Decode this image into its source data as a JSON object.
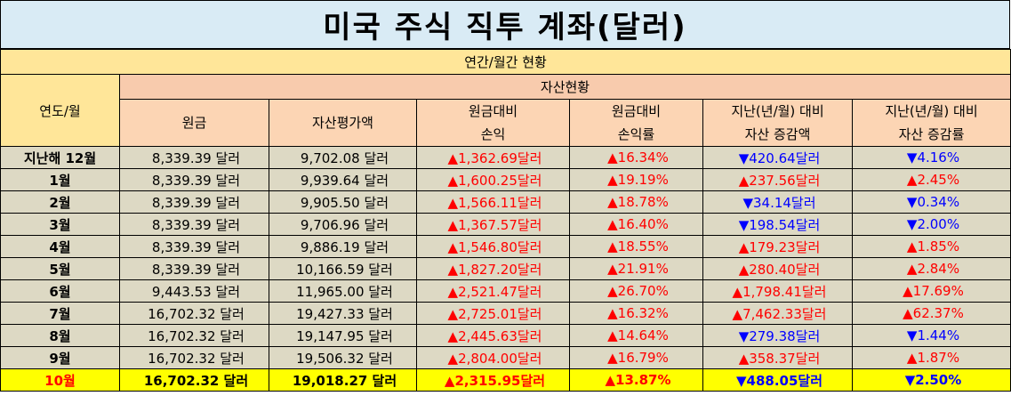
{
  "title": "미국 주식 직투 계좌(달러)",
  "period_header": "연간/월간 현황",
  "year_header": "연도/월",
  "asset_header": "자산현황",
  "columns": [
    [
      "원금"
    ],
    [
      "자산평가액"
    ],
    [
      "원금대비",
      "손익"
    ],
    [
      "원금대비",
      "손익률"
    ],
    [
      "지난(년/월) 대비",
      "자산 증감액"
    ],
    [
      "지난(년/월) 대비",
      "자산 증감률"
    ]
  ],
  "colors": {
    "up": "#ff0000",
    "down": "#0000ff",
    "highlight": "#ffff00"
  },
  "rows": [
    {
      "label": "지난해 12월",
      "principal": "8,339.39 달러",
      "value": "9,702.08 달러",
      "pl": "▲1,362.69달러",
      "pl_dir": "up",
      "pl_rate": "▲16.34%",
      "pl_rate_dir": "up",
      "chg": "▼420.64달러",
      "chg_dir": "down",
      "chg_rate": "▼4.16%",
      "chg_rate_dir": "down"
    },
    {
      "label": "1월",
      "principal": "8,339.39 달러",
      "value": "9,939.64 달러",
      "pl": "▲1,600.25달러",
      "pl_dir": "up",
      "pl_rate": "▲19.19%",
      "pl_rate_dir": "up",
      "chg": "▲237.56달러",
      "chg_dir": "up",
      "chg_rate": "▲2.45%",
      "chg_rate_dir": "up"
    },
    {
      "label": "2월",
      "principal": "8,339.39 달러",
      "value": "9,905.50 달러",
      "pl": "▲1,566.11달러",
      "pl_dir": "up",
      "pl_rate": "▲18.78%",
      "pl_rate_dir": "up",
      "chg": "▼34.14달러",
      "chg_dir": "down",
      "chg_rate": "▼0.34%",
      "chg_rate_dir": "down"
    },
    {
      "label": "3월",
      "principal": "8,339.39 달러",
      "value": "9,706.96 달러",
      "pl": "▲1,367.57달러",
      "pl_dir": "up",
      "pl_rate": "▲16.40%",
      "pl_rate_dir": "up",
      "chg": "▼198.54달러",
      "chg_dir": "down",
      "chg_rate": "▼2.00%",
      "chg_rate_dir": "down"
    },
    {
      "label": "4월",
      "principal": "8,339.39 달러",
      "value": "9,886.19 달러",
      "pl": "▲1,546.80달러",
      "pl_dir": "up",
      "pl_rate": "▲18.55%",
      "pl_rate_dir": "up",
      "chg": "▲179.23달러",
      "chg_dir": "up",
      "chg_rate": "▲1.85%",
      "chg_rate_dir": "up"
    },
    {
      "label": "5월",
      "principal": "8,339.39 달러",
      "value": "10,166.59 달러",
      "pl": "▲1,827.20달러",
      "pl_dir": "up",
      "pl_rate": "▲21.91%",
      "pl_rate_dir": "up",
      "chg": "▲280.40달러",
      "chg_dir": "up",
      "chg_rate": "▲2.84%",
      "chg_rate_dir": "up"
    },
    {
      "label": "6월",
      "principal": "9,443.53 달러",
      "value": "11,965.00 달러",
      "pl": "▲2,521.47달러",
      "pl_dir": "up",
      "pl_rate": "▲26.70%",
      "pl_rate_dir": "up",
      "chg": "▲1,798.41달러",
      "chg_dir": "up",
      "chg_rate": "▲17.69%",
      "chg_rate_dir": "up"
    },
    {
      "label": "7월",
      "principal": "16,702.32 달러",
      "value": "19,427.33 달러",
      "pl": "▲2,725.01달러",
      "pl_dir": "up",
      "pl_rate": "▲16.32%",
      "pl_rate_dir": "up",
      "chg": "▲7,462.33달러",
      "chg_dir": "up",
      "chg_rate": "▲62.37%",
      "chg_rate_dir": "up"
    },
    {
      "label": "8월",
      "principal": "16,702.32 달러",
      "value": "19,147.95 달러",
      "pl": "▲2,445.63달러",
      "pl_dir": "up",
      "pl_rate": "▲14.64%",
      "pl_rate_dir": "up",
      "chg": "▼279.38달러",
      "chg_dir": "down",
      "chg_rate": "▼1.44%",
      "chg_rate_dir": "down"
    },
    {
      "label": "9월",
      "principal": "16,702.32 달러",
      "value": "19,506.32 달러",
      "pl": "▲2,804.00달러",
      "pl_dir": "up",
      "pl_rate": "▲16.79%",
      "pl_rate_dir": "up",
      "chg": "▲358.37달러",
      "chg_dir": "up",
      "chg_rate": "▲1.87%",
      "chg_rate_dir": "up"
    },
    {
      "label": "10월",
      "principal": "16,702.32 달러",
      "value": "19,018.27 달러",
      "pl": "▲2,315.95달러",
      "pl_dir": "up",
      "pl_rate": "▲13.87%",
      "pl_rate_dir": "up",
      "chg": "▼488.05달러",
      "chg_dir": "down",
      "chg_rate": "▼2.50%",
      "chg_rate_dir": "down",
      "current": true
    }
  ]
}
